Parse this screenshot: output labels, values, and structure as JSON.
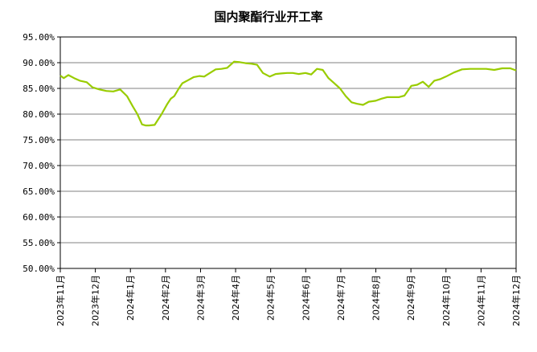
{
  "chart_data": {
    "type": "line",
    "title": "国内聚酯行业开工率",
    "xlabel": "",
    "ylabel": "",
    "y_tick_labels": [
      "50.00%",
      "55.00%",
      "60.00%",
      "65.00%",
      "70.00%",
      "75.00%",
      "80.00%",
      "85.00%",
      "90.00%",
      "95.00%"
    ],
    "ylim": [
      50,
      95
    ],
    "x_tick_labels": [
      "2023年11月",
      "2023年12月",
      "2024年1月",
      "2024年2月",
      "2024年3月",
      "2024年4月",
      "2024年5月",
      "2024年6月",
      "2024年7月",
      "2024年8月",
      "2024年9月",
      "2024年10月",
      "2024年11月",
      "2024年12月"
    ],
    "x_range": [
      "2023-11-01",
      "2024-12-01"
    ],
    "grid": true,
    "legend": "none",
    "line_color": "#99cc00",
    "series": [
      {
        "x": [
          "2023-11-01",
          "2023-11-04",
          "2023-11-08",
          "2023-11-13",
          "2023-11-18",
          "2023-11-24",
          "2023-11-29",
          "2023-12-05",
          "2023-12-11",
          "2023-12-17",
          "2023-12-23",
          "2023-12-29",
          "2024-01-03",
          "2024-01-07",
          "2024-01-11",
          "2024-01-14",
          "2024-01-17",
          "2024-01-22",
          "2024-01-28",
          "2024-02-02",
          "2024-02-05",
          "2024-02-08",
          "2024-02-12",
          "2024-02-15",
          "2024-02-20",
          "2024-02-25",
          "2024-03-01",
          "2024-03-05",
          "2024-03-10",
          "2024-03-15",
          "2024-03-20",
          "2024-03-25",
          "2024-03-31",
          "2024-04-05",
          "2024-04-10",
          "2024-04-15",
          "2024-04-20",
          "2024-04-25",
          "2024-05-01",
          "2024-05-06",
          "2024-05-11",
          "2024-05-16",
          "2024-05-21",
          "2024-05-26",
          "2024-06-01",
          "2024-06-06",
          "2024-06-11",
          "2024-06-16",
          "2024-06-21",
          "2024-06-26",
          "2024-07-01",
          "2024-07-06",
          "2024-07-11",
          "2024-07-16",
          "2024-07-21",
          "2024-07-26",
          "2024-08-01",
          "2024-08-06",
          "2024-08-11",
          "2024-08-16",
          "2024-08-21",
          "2024-08-26",
          "2024-09-01",
          "2024-09-06",
          "2024-09-11",
          "2024-09-16",
          "2024-09-21",
          "2024-09-26",
          "2024-10-01",
          "2024-10-08",
          "2024-10-15",
          "2024-10-22",
          "2024-10-29",
          "2024-11-05",
          "2024-11-12",
          "2024-11-19",
          "2024-11-26",
          "2024-12-01"
        ],
        "y": [
          87.5,
          87.0,
          87.6,
          87.0,
          86.5,
          86.2,
          85.2,
          84.8,
          84.5,
          84.4,
          84.8,
          83.5,
          81.5,
          80.0,
          78.0,
          77.8,
          77.8,
          77.9,
          80.0,
          82.0,
          83.0,
          83.5,
          85.0,
          86.0,
          86.6,
          87.2,
          87.4,
          87.3,
          88.0,
          88.7,
          88.8,
          89.0,
          90.2,
          90.1,
          89.9,
          89.8,
          89.6,
          88.0,
          87.3,
          87.8,
          87.9,
          88.0,
          88.0,
          87.8,
          88.0,
          87.7,
          88.8,
          88.6,
          87.0,
          86.0,
          85.0,
          83.5,
          82.3,
          82.0,
          81.8,
          82.4,
          82.6,
          83.0,
          83.3,
          83.3,
          83.3,
          83.6,
          85.5,
          85.7,
          86.3,
          85.3,
          86.5,
          86.8,
          87.3,
          88.1,
          88.7,
          88.8,
          88.8,
          88.8,
          88.6,
          88.9,
          88.9,
          88.5
        ]
      }
    ]
  }
}
